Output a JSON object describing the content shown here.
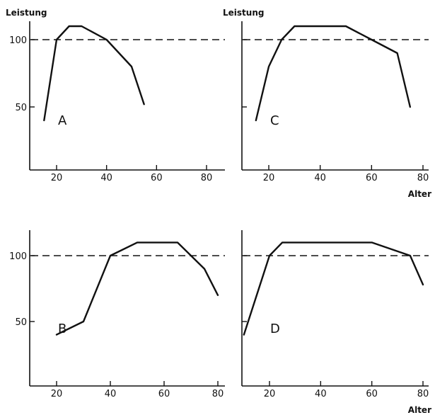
{
  "chart_data": [
    {
      "type": "line",
      "panel_letter": "A",
      "ylabel": "Leistung",
      "xlabel": "",
      "xlim": [
        10,
        80
      ],
      "ylim": [
        0,
        120
      ],
      "xticks": [
        20,
        40,
        60,
        80
      ],
      "yticks": [
        50,
        100
      ],
      "xtick_labels": [
        "20",
        "40",
        "60",
        "80"
      ],
      "ytick_labels": [
        "50",
        "100"
      ],
      "reference_line": 100,
      "x": [
        15,
        20,
        25,
        30,
        40,
        50,
        55
      ],
      "y": [
        40,
        100,
        110,
        110,
        100,
        80,
        52
      ]
    },
    {
      "type": "line",
      "panel_letter": "C",
      "ylabel": "Leistung",
      "xlabel": "Alter",
      "xlim": [
        10,
        80
      ],
      "ylim": [
        0,
        120
      ],
      "xticks": [
        20,
        40,
        60,
        80
      ],
      "yticks": [
        50,
        100
      ],
      "xtick_labels": [
        "20",
        "40",
        "60",
        "80"
      ],
      "ytick_labels": [
        "",
        ""
      ],
      "reference_line": 100,
      "x": [
        15,
        20,
        25,
        30,
        50,
        60,
        70,
        75
      ],
      "y": [
        40,
        80,
        100,
        110,
        110,
        100,
        90,
        50
      ]
    },
    {
      "type": "line",
      "panel_letter": "B",
      "ylabel": "",
      "xlabel": "",
      "xlim": [
        10,
        80
      ],
      "ylim": [
        0,
        120
      ],
      "xticks": [
        20,
        40,
        60,
        80
      ],
      "yticks": [
        50,
        100
      ],
      "xtick_labels": [
        "20",
        "40",
        "60",
        "80"
      ],
      "ytick_labels": [
        "50",
        "100"
      ],
      "reference_line": 100,
      "x": [
        20,
        30,
        40,
        50,
        65,
        75,
        80
      ],
      "y": [
        40,
        50,
        100,
        110,
        110,
        90,
        70
      ]
    },
    {
      "type": "line",
      "panel_letter": "D",
      "ylabel": "",
      "xlabel": "Alter",
      "xlim": [
        10,
        80
      ],
      "ylim": [
        0,
        120
      ],
      "xticks": [
        20,
        40,
        60,
        80
      ],
      "yticks": [
        50,
        100
      ],
      "xtick_labels": [
        "20",
        "40",
        "60",
        "80"
      ],
      "ytick_labels": [
        "",
        ""
      ],
      "reference_line": 100,
      "x": [
        10,
        20,
        25,
        60,
        75,
        80
      ],
      "y": [
        40,
        100,
        110,
        110,
        100,
        78
      ]
    }
  ]
}
